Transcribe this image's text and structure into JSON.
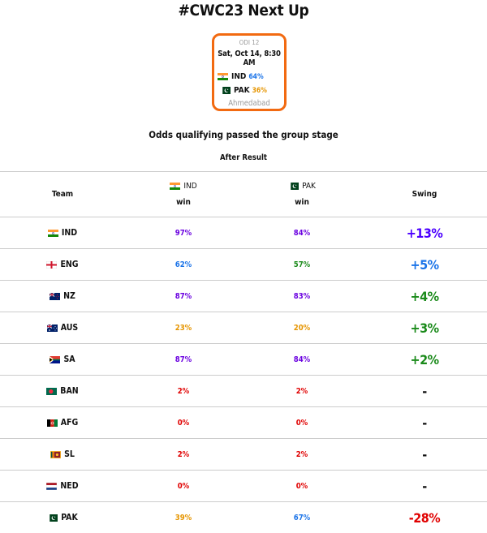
{
  "page": {
    "title": "#CWC23 Next Up"
  },
  "match": {
    "odi": "ODI 12",
    "datetime": "Sat, Oct 14, 8:30 AM",
    "team1": {
      "code": "IND",
      "pct": "64%",
      "pct_color": "#1a73e8",
      "flag": "india-flag-icon"
    },
    "team2": {
      "code": "PAK",
      "pct": "36%",
      "pct_color": "#e69500",
      "flag": "pakistan-flag-icon"
    },
    "venue": "Ahmedabad",
    "border_color": "#f26a11"
  },
  "subtitle": "Odds qualifying passed the group stage",
  "after_label": "After Result",
  "table": {
    "headers": {
      "team": "Team",
      "ind_code": "IND",
      "ind_sub": "win",
      "pak_code": "PAK",
      "pak_sub": "win",
      "swing": "Swing"
    },
    "rows": [
      {
        "team": "IND",
        "flag": "india-flag-icon",
        "ind": "97%",
        "ind_color": "#6a00e0",
        "pak": "84%",
        "pak_color": "#6a00e0",
        "swing": "+13%",
        "swing_color": "#4b00ff"
      },
      {
        "team": "ENG",
        "flag": "england-flag-icon",
        "ind": "62%",
        "ind_color": "#1a73e8",
        "pak": "57%",
        "pak_color": "#1a8a1a",
        "swing": "+5%",
        "swing_color": "#1a73e8"
      },
      {
        "team": "NZ",
        "flag": "new-zealand-flag-icon",
        "ind": "87%",
        "ind_color": "#6a00e0",
        "pak": "83%",
        "pak_color": "#6a00e0",
        "swing": "+4%",
        "swing_color": "#1a8a1a"
      },
      {
        "team": "AUS",
        "flag": "australia-flag-icon",
        "ind": "23%",
        "ind_color": "#e69500",
        "pak": "20%",
        "pak_color": "#e69500",
        "swing": "+3%",
        "swing_color": "#1a8a1a"
      },
      {
        "team": "SA",
        "flag": "south-africa-flag-icon",
        "ind": "87%",
        "ind_color": "#6a00e0",
        "pak": "84%",
        "pak_color": "#6a00e0",
        "swing": "+2%",
        "swing_color": "#1a8a1a"
      },
      {
        "team": "BAN",
        "flag": "bangladesh-flag-icon",
        "ind": "2%",
        "ind_color": "#e00000",
        "pak": "2%",
        "pak_color": "#e00000",
        "swing": "-",
        "swing_color": "#111111"
      },
      {
        "team": "AFG",
        "flag": "afghanistan-flag-icon",
        "ind": "0%",
        "ind_color": "#e00000",
        "pak": "0%",
        "pak_color": "#e00000",
        "swing": "-",
        "swing_color": "#111111"
      },
      {
        "team": "SL",
        "flag": "sri-lanka-flag-icon",
        "ind": "2%",
        "ind_color": "#e00000",
        "pak": "2%",
        "pak_color": "#e00000",
        "swing": "-",
        "swing_color": "#111111"
      },
      {
        "team": "NED",
        "flag": "netherlands-flag-icon",
        "ind": "0%",
        "ind_color": "#e00000",
        "pak": "0%",
        "pak_color": "#e00000",
        "swing": "-",
        "swing_color": "#111111"
      },
      {
        "team": "PAK",
        "flag": "pakistan-flag-icon",
        "ind": "39%",
        "ind_color": "#e69500",
        "pak": "67%",
        "pak_color": "#1a73e8",
        "swing": "-28%",
        "swing_color": "#e00000"
      }
    ]
  }
}
